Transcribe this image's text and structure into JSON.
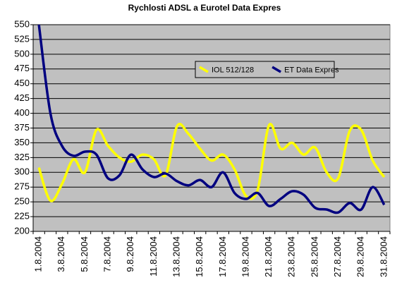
{
  "chart_data": {
    "type": "line",
    "title": "Rychlosti ADSL a Eurotel Data Expres",
    "categories": [
      "1.8.2004",
      null,
      "3.8.2004",
      null,
      "5.8.2004",
      null,
      "7.8.2004",
      null,
      "9.8.2004",
      null,
      "11.8.2004",
      null,
      "13.8.2004",
      null,
      "15.8.2004",
      null,
      "17.8.2004",
      null,
      "19.8.2004",
      null,
      "21.8.2004",
      null,
      "23.8.2004",
      null,
      "25.8.2004",
      null,
      "27.8.2004",
      null,
      "29.8.2004",
      null,
      "31.8.2004"
    ],
    "series": [
      {
        "name": "IOL 512/128",
        "color": "#ffff00",
        "values": [
          308,
          252,
          280,
          322,
          300,
          372,
          345,
          325,
          318,
          330,
          322,
          295,
          378,
          365,
          340,
          320,
          330,
          305,
          260,
          270,
          380,
          340,
          350,
          330,
          342,
          300,
          290,
          370,
          372,
          320,
          292
        ]
      },
      {
        "name": "ET Data Expres",
        "color": "#000080",
        "values": [
          550,
          400,
          345,
          328,
          335,
          330,
          290,
          295,
          330,
          305,
          292,
          298,
          285,
          278,
          287,
          275,
          300,
          265,
          255,
          265,
          243,
          255,
          268,
          262,
          240,
          237,
          232,
          248,
          237,
          275,
          245
        ]
      }
    ],
    "ylim": [
      200,
      550
    ],
    "yticks": [
      200,
      225,
      250,
      275,
      300,
      325,
      350,
      375,
      400,
      425,
      450,
      475,
      500,
      525,
      550
    ],
    "grid": true,
    "legend": "top-center",
    "plot_background": "#c0c0c0"
  }
}
